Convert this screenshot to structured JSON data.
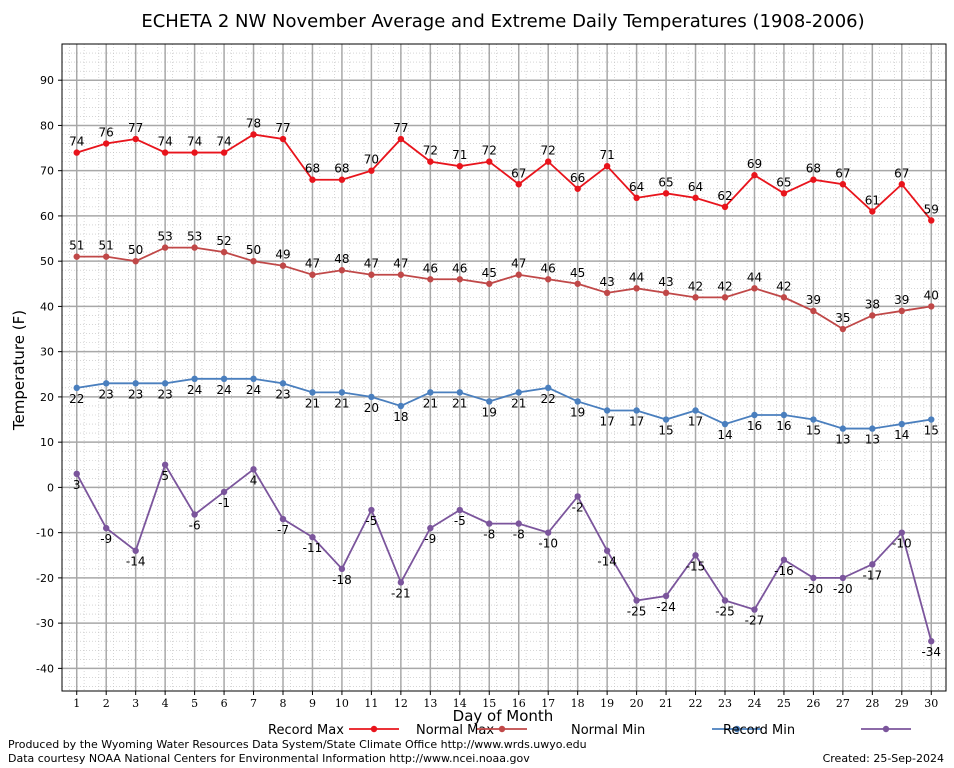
{
  "chart_data": {
    "type": "line",
    "title": "ECHETA 2 NW November Average and Extreme Daily Temperatures (1908-2006)",
    "xlabel": "Day of Month",
    "ylabel": "Temperature (F)",
    "ylim": [
      -45,
      98
    ],
    "yticks": [
      -40,
      -30,
      -20,
      -10,
      0,
      10,
      20,
      30,
      40,
      50,
      60,
      70,
      80,
      90
    ],
    "x": [
      1,
      2,
      3,
      4,
      5,
      6,
      7,
      8,
      9,
      10,
      11,
      12,
      13,
      14,
      15,
      16,
      17,
      18,
      19,
      20,
      21,
      22,
      23,
      24,
      25,
      26,
      27,
      28,
      29,
      30
    ],
    "grid": true,
    "legend_position": "bottom",
    "series": [
      {
        "name": "Record Max",
        "color": "#e8141c",
        "label_pos": "above",
        "values": [
          74,
          76,
          77,
          74,
          74,
          74,
          78,
          77,
          68,
          68,
          70,
          77,
          72,
          71,
          72,
          67,
          72,
          66,
          71,
          64,
          65,
          64,
          62,
          69,
          65,
          68,
          67,
          61,
          67,
          59
        ]
      },
      {
        "name": "Normal Max",
        "color": "#c04848",
        "label_pos": "above",
        "values": [
          51,
          51,
          50,
          53,
          53,
          52,
          50,
          49,
          47,
          48,
          47,
          47,
          46,
          46,
          45,
          47,
          46,
          45,
          43,
          44,
          43,
          42,
          42,
          44,
          42,
          39,
          35,
          38,
          39,
          40
        ]
      },
      {
        "name": "Normal Min",
        "color": "#4a7fbe",
        "label_pos": "below",
        "values": [
          22,
          23,
          23,
          23,
          24,
          24,
          24,
          23,
          21,
          21,
          20,
          18,
          21,
          21,
          19,
          21,
          22,
          19,
          17,
          17,
          15,
          17,
          14,
          16,
          16,
          15,
          13,
          13,
          14,
          15
        ]
      },
      {
        "name": "Record Min",
        "color": "#7b559c",
        "label_pos": "below",
        "values": [
          3,
          -9,
          -14,
          5,
          -6,
          -1,
          4,
          -7,
          -11,
          -18,
          -5,
          -21,
          -9,
          -5,
          -8,
          -8,
          -10,
          -2,
          -14,
          -25,
          -24,
          -15,
          -25,
          -27,
          -16,
          -20,
          -20,
          -17,
          -10,
          -34
        ]
      }
    ]
  },
  "footer": {
    "produced_by": "Produced by the Wyoming Water Resources Data System/State Climate Office http://www.wrds.uwyo.edu",
    "courtesy": "Data courtesy NOAA National Centers for Environmental Information http://www.ncei.noaa.gov",
    "created": "Created:  25-Sep-2024"
  }
}
